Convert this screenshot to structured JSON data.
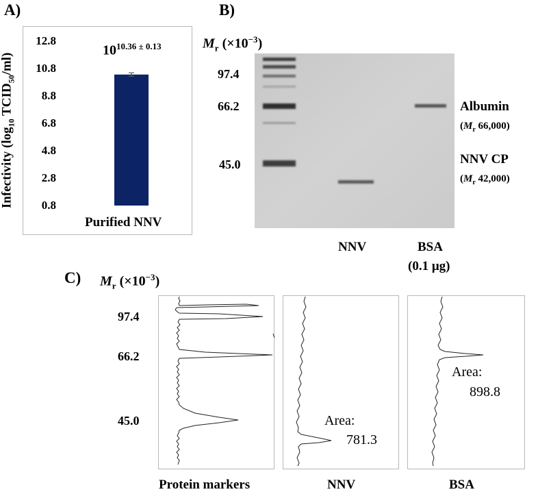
{
  "panels": {
    "a": "A)",
    "b": "B)",
    "c": "C)"
  },
  "panel_a": {
    "ylabel": "Infectivity (log10 TCID50/ml)",
    "ylabel_parts": [
      "Infectivity (log",
      "10",
      " TCID",
      "50",
      "/ml)"
    ],
    "annotation_base": "10",
    "annotation_exp": "10.36 ± 0.13",
    "bar_color": "#0c2466",
    "chart_data": {
      "type": "bar",
      "categories": [
        "Purified NNV"
      ],
      "values": [
        10.36
      ],
      "error": [
        0.13
      ],
      "ylim": [
        0.8,
        12.8
      ],
      "yticks": [
        "12.8",
        "10.8",
        "8.8",
        "6.8",
        "4.8",
        "2.8",
        "0.8"
      ]
    }
  },
  "panel_b": {
    "mr_label": "M",
    "mr_sub": "r",
    "mr_scale": " (×10",
    "mr_exp": "−3",
    "mr_close": ")",
    "ticks": [
      "97.4",
      "66.2",
      "45.0"
    ],
    "albumin": "Albumin",
    "albumin_mr": "M",
    "albumin_mr_sub": "r",
    "albumin_value": " 66,000)",
    "cp": "NNV CP",
    "cp_mr": "M",
    "cp_mr_sub": "r",
    "cp_value": " 42,000)",
    "lane_nnv": "NNV",
    "lane_bsa": "BSA",
    "lane_bsa_amount": "(0.1 μg)"
  },
  "panel_c": {
    "mr_label": "M",
    "mr_sub": "r",
    "mr_scale": " (×10",
    "mr_exp": "−3",
    "mr_close": ")",
    "ticks": [
      "97.4",
      "66.2",
      "45.0"
    ],
    "area_label": "Area:",
    "area_nnv": "781.3",
    "area_bsa": "898.8",
    "lane_markers": "Protein markers",
    "lane_nnv": "NNV",
    "lane_bsa": "BSA"
  }
}
